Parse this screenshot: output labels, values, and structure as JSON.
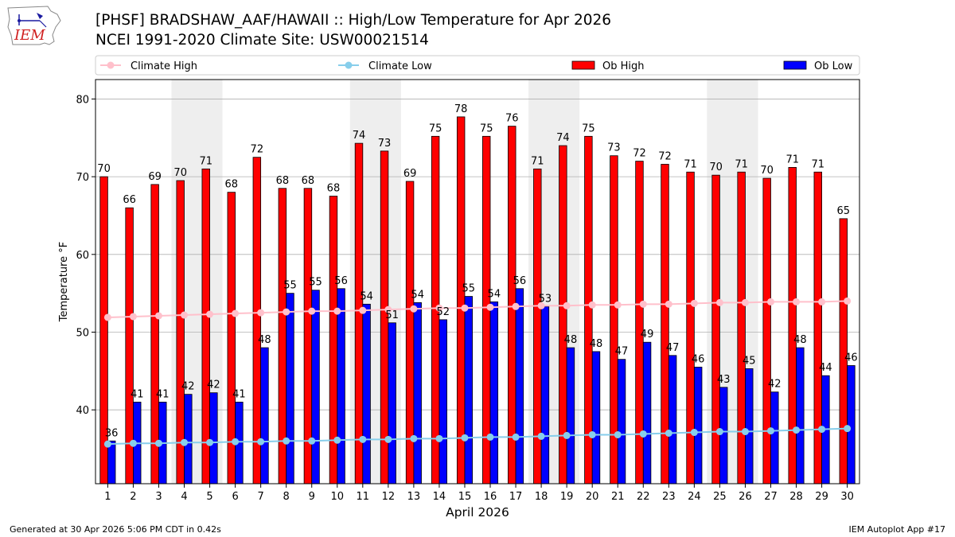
{
  "header": {
    "title_line1": "[PHSF] BRADSHAW_AAF/HAWAII :: High/Low Temperature for Apr 2026",
    "title_line2": "NCEI 1991-2020 Climate Site: USW00021514",
    "logo_text": "IEM"
  },
  "footer": {
    "generated": "Generated at 30 Apr 2026 5:06 PM CDT in 0.42s",
    "app": "IEM Autoplot App #17"
  },
  "colors": {
    "ob_high": "#ff0000",
    "ob_low": "#0000ff",
    "climate_high": "#ffc0cb",
    "climate_low": "#87ceeb",
    "weekend_band": "#eeeeee",
    "grid": "#b0b0b0"
  },
  "chart_data": {
    "type": "bar",
    "title": "[PHSF] BRADSHAW_AAF/HAWAII :: High/Low Temperature for Apr 2026",
    "subtitle": "NCEI 1991-2020 Climate Site: USW00021514",
    "xlabel": "April 2026",
    "ylabel": "Temperature °F",
    "ylim": [
      30.5,
      82.5
    ],
    "yticks": [
      40,
      50,
      60,
      70,
      80
    ],
    "grid": true,
    "legend_position": "top",
    "categories": [
      1,
      2,
      3,
      4,
      5,
      6,
      7,
      8,
      9,
      10,
      11,
      12,
      13,
      14,
      15,
      16,
      17,
      18,
      19,
      20,
      21,
      22,
      23,
      24,
      25,
      26,
      27,
      28,
      29,
      30
    ],
    "shaded_days": [
      [
        4,
        5
      ],
      [
        11,
        12
      ],
      [
        18,
        19
      ],
      [
        25,
        26
      ]
    ],
    "series": [
      {
        "name": "Climate High",
        "kind": "line",
        "values": [
          51.9,
          52.0,
          52.1,
          52.2,
          52.3,
          52.4,
          52.5,
          52.6,
          52.7,
          52.7,
          52.8,
          52.9,
          53.0,
          53.1,
          53.1,
          53.2,
          53.3,
          53.4,
          53.4,
          53.5,
          53.5,
          53.6,
          53.6,
          53.7,
          53.8,
          53.8,
          53.9,
          53.9,
          53.9,
          54.0
        ]
      },
      {
        "name": "Climate Low",
        "kind": "line",
        "values": [
          35.6,
          35.7,
          35.7,
          35.8,
          35.8,
          35.9,
          35.9,
          36.0,
          36.0,
          36.1,
          36.2,
          36.2,
          36.3,
          36.3,
          36.4,
          36.5,
          36.5,
          36.6,
          36.7,
          36.8,
          36.8,
          36.9,
          37.0,
          37.1,
          37.2,
          37.2,
          37.3,
          37.4,
          37.5,
          37.6
        ]
      },
      {
        "name": "Ob High",
        "kind": "bar",
        "values": [
          70,
          66,
          69,
          70,
          71,
          68,
          72,
          68,
          68,
          68,
          74,
          73,
          69,
          75,
          78,
          75,
          76,
          71,
          74,
          75,
          73,
          72,
          72,
          71,
          70,
          71,
          70,
          71,
          71,
          65
        ],
        "heights": [
          70,
          66,
          69,
          69.5,
          71,
          68,
          72.5,
          68.5,
          68.5,
          67.5,
          74.3,
          73.3,
          69.4,
          75.2,
          77.7,
          75.2,
          76.5,
          71,
          74,
          75.2,
          72.7,
          72,
          71.6,
          70.6,
          70.2,
          70.6,
          69.8,
          71.2,
          70.6,
          64.6
        ]
      },
      {
        "name": "Ob Low",
        "kind": "bar",
        "values": [
          36,
          41,
          41,
          42,
          42,
          41,
          48,
          55,
          55,
          56,
          54,
          51,
          54,
          52,
          55,
          54,
          56,
          53,
          48,
          48,
          47,
          49,
          47,
          46,
          43,
          45,
          42,
          48,
          44,
          46
        ],
        "heights": [
          36,
          41,
          41,
          42,
          42.2,
          41,
          48,
          55,
          55.4,
          55.6,
          53.6,
          51.2,
          53.8,
          51.6,
          54.6,
          53.9,
          55.6,
          53.3,
          48,
          47.5,
          46.5,
          48.7,
          47,
          45.5,
          42.9,
          45.3,
          42.3,
          48,
          44.4,
          45.7
        ]
      }
    ]
  }
}
